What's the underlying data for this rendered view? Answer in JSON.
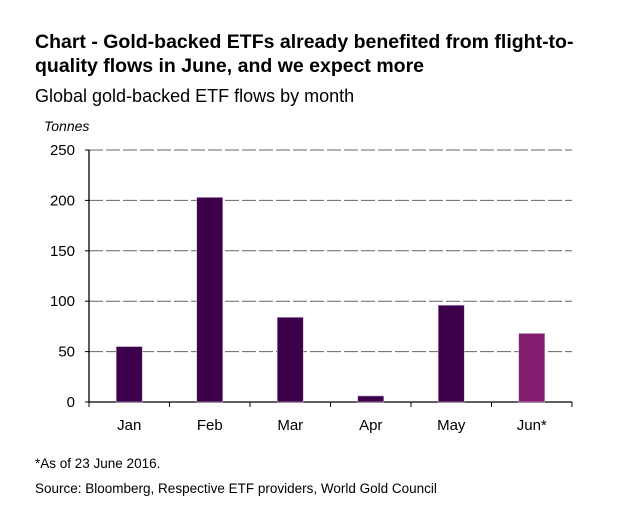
{
  "title": "Chart  -  Gold-backed ETFs already benefited from flight-to-quality flows in June, and we expect more",
  "subtitle": "Global gold-backed ETF flows by month",
  "footnote": "*As of 23 June 2016.",
  "source": "Source: Bloomberg, Respective ETF providers, World Gold Council",
  "chart_data": {
    "type": "bar",
    "ylabel": "Tonnes",
    "categories": [
      "Jan",
      "Feb",
      "Mar",
      "Apr",
      "May",
      "Jun*"
    ],
    "values": [
      55,
      203,
      84,
      6,
      96,
      68
    ],
    "colors": [
      "#3d004a",
      "#3d004a",
      "#3d004a",
      "#3d004a",
      "#3d004a",
      "#831c6e"
    ],
    "ylim": [
      0,
      250
    ],
    "yticks": [
      0,
      50,
      100,
      150,
      200,
      250
    ],
    "grid": true
  }
}
